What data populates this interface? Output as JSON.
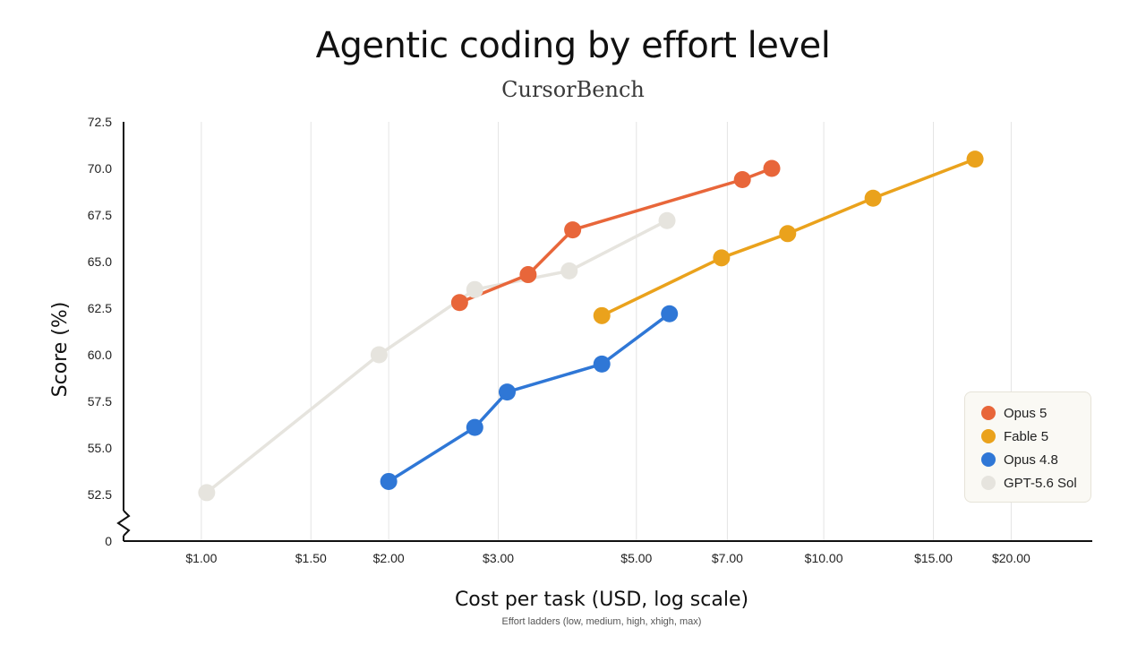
{
  "chart_data": {
    "type": "line",
    "title": "Agentic coding by effort level",
    "subtitle": "CursorBench",
    "xlabel": "Cost per task (USD, log scale)",
    "ylabel": "Score (%)",
    "note": "Effort ladders (low, medium, high, xhigh, max)",
    "x_scale": "log",
    "xlim": [
      0.75,
      27
    ],
    "x_ticks": [
      1.0,
      1.5,
      2.0,
      3.0,
      5.0,
      7.0,
      10.0,
      15.0,
      20.0
    ],
    "x_tick_labels": [
      "$1.00",
      "$1.50",
      "$2.00",
      "$3.00",
      "$5.00",
      "$7.00",
      "$10.00",
      "$15.00",
      "$20.00"
    ],
    "ylim": [
      52.5,
      72.5
    ],
    "y_ticks": [
      52.5,
      55.0,
      57.5,
      60.0,
      62.5,
      65.0,
      67.5,
      70.0,
      72.5
    ],
    "y_tick_labels": [
      "52.5",
      "55.0",
      "57.5",
      "60.0",
      "62.5",
      "65.0",
      "67.5",
      "70.0",
      "72.5"
    ],
    "y_zero_label": "0",
    "y_axis_break": true,
    "grid": "vertical",
    "legend_position": "bottom-right",
    "series": [
      {
        "name": "Opus 5",
        "color": "#e8663a",
        "x": [
          2.6,
          3.35,
          3.95,
          7.4,
          8.25
        ],
        "y": [
          62.8,
          64.3,
          66.7,
          69.4,
          70.0
        ]
      },
      {
        "name": "Fable 5",
        "color": "#eaa21c",
        "x": [
          4.4,
          6.85,
          8.75,
          12.0,
          17.5
        ],
        "y": [
          62.1,
          65.2,
          66.5,
          68.4,
          70.5
        ]
      },
      {
        "name": "Opus 4.8",
        "color": "#2f77d6",
        "x": [
          2.0,
          2.75,
          3.1,
          4.4,
          5.65
        ],
        "y": [
          53.2,
          56.1,
          58.0,
          59.5,
          62.2
        ]
      },
      {
        "name": "GPT-5.6 Sol",
        "color": "#e6e4de",
        "x": [
          1.02,
          1.93,
          2.75,
          3.9,
          5.6
        ],
        "y": [
          52.6,
          60.0,
          63.5,
          64.5,
          67.2
        ]
      }
    ]
  }
}
